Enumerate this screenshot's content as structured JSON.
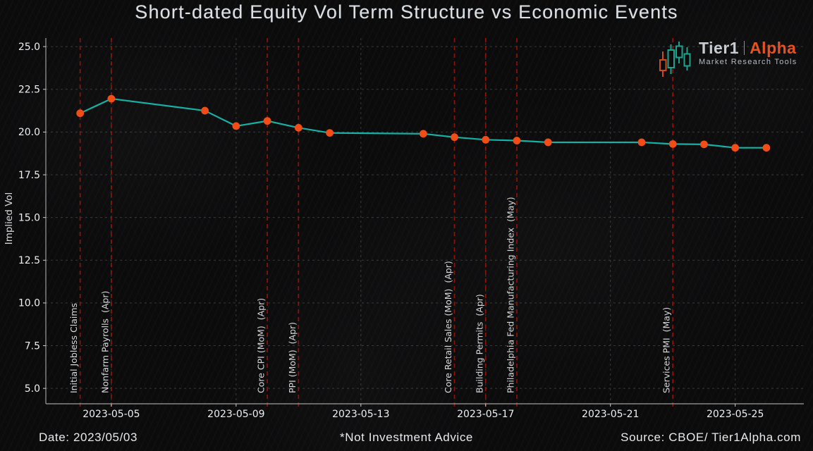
{
  "logo": {
    "brand_primary": "Tier1",
    "brand_secondary": "Alpha",
    "tagline": "Market Research Tools",
    "orange": "#e8511d",
    "teal": "#1ca38e"
  },
  "footer": {
    "date": "Date: 2023/05/03",
    "disclaimer": "*Not Investment Advice",
    "source": "Source: CBOE/ Tier1Alpha.com"
  },
  "chart_data": {
    "type": "line",
    "title": "Short-dated Equity Vol Term Structure vs Economic Events",
    "xlabel": "",
    "ylabel": "Implied Vol",
    "x": [
      "2023-05-04",
      "2023-05-05",
      "2023-05-08",
      "2023-05-09",
      "2023-05-10",
      "2023-05-11",
      "2023-05-12",
      "2023-05-15",
      "2023-05-16",
      "2023-05-17",
      "2023-05-18",
      "2023-05-19",
      "2023-05-22",
      "2023-05-23",
      "2023-05-24",
      "2023-05-25",
      "2023-05-26"
    ],
    "values": [
      21.1,
      21.95,
      21.25,
      20.35,
      20.65,
      20.25,
      19.95,
      19.9,
      19.7,
      19.55,
      19.5,
      19.4,
      19.4,
      19.3,
      19.28,
      19.08,
      19.08
    ],
    "x_tick_labels": [
      "2023-05-05",
      "2023-05-09",
      "2023-05-13",
      "2023-05-17",
      "2023-05-21",
      "2023-05-25"
    ],
    "y_tick_labels": [
      "25.0",
      "22.5",
      "20.0",
      "17.5",
      "15.0",
      "12.5",
      "10.0",
      "7.5",
      "5.0"
    ],
    "ylim": [
      4.1,
      25.5
    ],
    "grid": true,
    "legend": false,
    "line_color": "#16b1a4",
    "marker_color": "#f24d16",
    "event_line_color": "#a01208",
    "grid_color": "#9aa0a6",
    "axis_color": "#9e9e9e",
    "tick_label_color": "#eceff1",
    "event_label_color": "#d6d8da",
    "events": [
      {
        "date": "2023-05-04",
        "label": "Initial Jobless Claims"
      },
      {
        "date": "2023-05-05",
        "label": "Nonfarm Payrolls  (Apr)"
      },
      {
        "date": "2023-05-10",
        "label": "Core CPI (MoM)  (Apr)"
      },
      {
        "date": "2023-05-11",
        "label": "PPI (MoM)  (Apr)"
      },
      {
        "date": "2023-05-16",
        "label": "Core Retail Sales (MoM)  (Apr)"
      },
      {
        "date": "2023-05-17",
        "label": "Building Permits  (Apr)"
      },
      {
        "date": "2023-05-18",
        "label": "Philadelphia Fed Manufacturing Index  (May)"
      },
      {
        "date": "2023-05-23",
        "label": "Services PMI  (May)"
      }
    ]
  }
}
